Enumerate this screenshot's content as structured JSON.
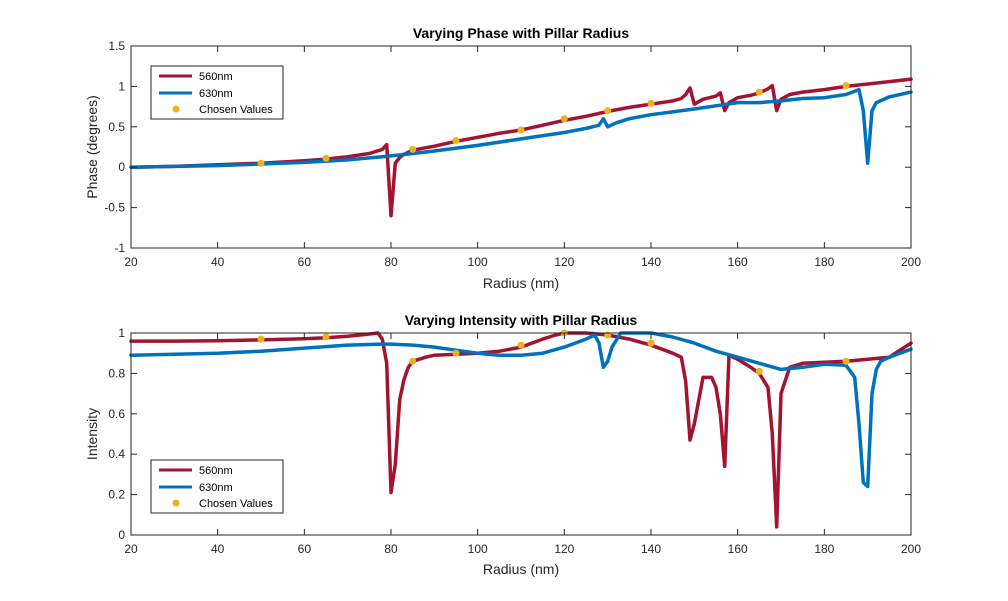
{
  "chart_data": [
    {
      "type": "line",
      "title": "Varying Phase with Pillar Radius",
      "xlabel": "Radius (nm)",
      "ylabel": "Phase (degrees)",
      "xlim": [
        20,
        200
      ],
      "ylim": [
        -1,
        1.5
      ],
      "xticks": [
        20,
        40,
        60,
        80,
        100,
        120,
        140,
        160,
        180,
        200
      ],
      "yticks": [
        -1,
        -0.5,
        0,
        0.5,
        1,
        1.5
      ],
      "xtick_labels": [
        "20",
        "40",
        "60",
        "80",
        "100",
        "120",
        "140",
        "160",
        "180",
        "200"
      ],
      "ytick_labels": [
        "-1",
        "-0.5",
        "0",
        "0.5",
        "1",
        "1.5"
      ],
      "legend": {
        "position": "top-left",
        "entries": [
          "560nm",
          "630nm",
          "Chosen Values"
        ]
      },
      "series": [
        {
          "name": "560nm",
          "color": "#A2142F",
          "x": [
            20,
            30,
            40,
            50,
            60,
            65,
            70,
            75,
            78,
            79,
            80,
            81,
            82,
            83,
            85,
            90,
            95,
            100,
            105,
            110,
            115,
            120,
            125,
            130,
            135,
            140,
            145,
            147,
            148,
            149,
            150,
            152,
            155,
            156,
            157,
            158,
            160,
            163,
            165,
            167,
            168,
            169,
            170,
            172,
            175,
            180,
            185,
            190,
            195,
            200
          ],
          "y": [
            0,
            0.01,
            0.03,
            0.05,
            0.08,
            0.1,
            0.13,
            0.17,
            0.22,
            0.28,
            -0.6,
            0.05,
            0.12,
            0.16,
            0.21,
            0.26,
            0.32,
            0.37,
            0.42,
            0.46,
            0.52,
            0.58,
            0.63,
            0.69,
            0.74,
            0.78,
            0.82,
            0.85,
            0.9,
            0.98,
            0.78,
            0.84,
            0.88,
            0.92,
            0.7,
            0.8,
            0.86,
            0.89,
            0.92,
            0.97,
            1.01,
            0.7,
            0.84,
            0.9,
            0.93,
            0.96,
            1.0,
            1.03,
            1.06,
            1.09
          ]
        },
        {
          "name": "630nm",
          "color": "#0072BD",
          "x": [
            20,
            30,
            40,
            50,
            60,
            70,
            80,
            85,
            90,
            100,
            110,
            120,
            125,
            128,
            129,
            130,
            132,
            135,
            140,
            150,
            155,
            160,
            165,
            170,
            175,
            180,
            185,
            187,
            188,
            189,
            190,
            191,
            192,
            195,
            200
          ],
          "y": [
            0,
            0.01,
            0.02,
            0.04,
            0.06,
            0.09,
            0.14,
            0.17,
            0.2,
            0.27,
            0.35,
            0.43,
            0.48,
            0.52,
            0.6,
            0.5,
            0.55,
            0.6,
            0.65,
            0.72,
            0.76,
            0.8,
            0.8,
            0.82,
            0.85,
            0.86,
            0.9,
            0.94,
            0.96,
            0.7,
            0.05,
            0.7,
            0.8,
            0.87,
            0.93
          ]
        }
      ],
      "chosen_values": {
        "name": "Chosen Values",
        "color": "#EDB120",
        "x": [
          50,
          65,
          85,
          95,
          110,
          120,
          130,
          140,
          165,
          185
        ],
        "y": [
          0.05,
          0.11,
          0.22,
          0.33,
          0.46,
          0.6,
          0.7,
          0.79,
          0.93,
          1.01
        ]
      }
    },
    {
      "type": "line",
      "title": "Varying Intensity with Pillar Radius",
      "xlabel": "Radius (nm)",
      "ylabel": "Intensity",
      "xlim": [
        20,
        200
      ],
      "ylim": [
        0,
        1
      ],
      "xticks": [
        20,
        40,
        60,
        80,
        100,
        120,
        140,
        160,
        180,
        200
      ],
      "yticks": [
        0,
        0.2,
        0.4,
        0.6,
        0.8,
        1
      ],
      "xtick_labels": [
        "20",
        "40",
        "60",
        "80",
        "100",
        "120",
        "140",
        "160",
        "180",
        "200"
      ],
      "ytick_labels": [
        "0",
        "0.2",
        "0.4",
        "0.6",
        "0.8",
        "1"
      ],
      "legend": {
        "position": "bottom-left",
        "entries": [
          "560nm",
          "630nm",
          "Chosen Values"
        ]
      },
      "series": [
        {
          "name": "560nm",
          "color": "#A2142F",
          "x": [
            20,
            30,
            40,
            50,
            60,
            65,
            70,
            75,
            77,
            78,
            79,
            80,
            81,
            82,
            83,
            84,
            85,
            88,
            90,
            95,
            100,
            105,
            110,
            115,
            118,
            120,
            125,
            130,
            135,
            140,
            145,
            147,
            148,
            149,
            150,
            152,
            154,
            155,
            156,
            157,
            158,
            160,
            163,
            165,
            167,
            168,
            169,
            170,
            172,
            175,
            180,
            185,
            190,
            195,
            200
          ],
          "y": [
            0.96,
            0.96,
            0.962,
            0.966,
            0.972,
            0.976,
            0.984,
            0.995,
            1.0,
            0.97,
            0.85,
            0.21,
            0.35,
            0.67,
            0.77,
            0.83,
            0.86,
            0.88,
            0.89,
            0.895,
            0.9,
            0.91,
            0.93,
            0.97,
            0.99,
            1.0,
            1.0,
            0.99,
            0.97,
            0.94,
            0.9,
            0.88,
            0.76,
            0.47,
            0.55,
            0.78,
            0.78,
            0.73,
            0.6,
            0.34,
            0.89,
            0.87,
            0.83,
            0.8,
            0.73,
            0.5,
            0.04,
            0.7,
            0.83,
            0.85,
            0.855,
            0.86,
            0.87,
            0.88,
            0.95
          ]
        },
        {
          "name": "630nm",
          "color": "#0072BD",
          "x": [
            20,
            30,
            40,
            50,
            60,
            70,
            78,
            80,
            85,
            90,
            95,
            100,
            105,
            110,
            115,
            120,
            125,
            127,
            128,
            129,
            130,
            131,
            133,
            136,
            140,
            145,
            150,
            155,
            160,
            165,
            170,
            175,
            180,
            185,
            187,
            188,
            189,
            190,
            191,
            192,
            193,
            195,
            200
          ],
          "y": [
            0.89,
            0.895,
            0.9,
            0.91,
            0.925,
            0.94,
            0.945,
            0.945,
            0.94,
            0.93,
            0.915,
            0.9,
            0.89,
            0.89,
            0.9,
            0.93,
            0.97,
            0.99,
            0.95,
            0.83,
            0.86,
            0.93,
            1.0,
            1.0,
            1.0,
            0.98,
            0.95,
            0.91,
            0.88,
            0.85,
            0.82,
            0.83,
            0.845,
            0.84,
            0.78,
            0.55,
            0.26,
            0.24,
            0.7,
            0.82,
            0.86,
            0.88,
            0.92
          ]
        }
      ],
      "chosen_values": {
        "name": "Chosen Values",
        "color": "#EDB120",
        "x": [
          50,
          65,
          85,
          95,
          110,
          120,
          130,
          140,
          165,
          185
        ],
        "y": [
          0.97,
          0.98,
          0.86,
          0.9,
          0.94,
          1.0,
          0.99,
          0.95,
          0.81,
          0.86
        ]
      }
    }
  ]
}
